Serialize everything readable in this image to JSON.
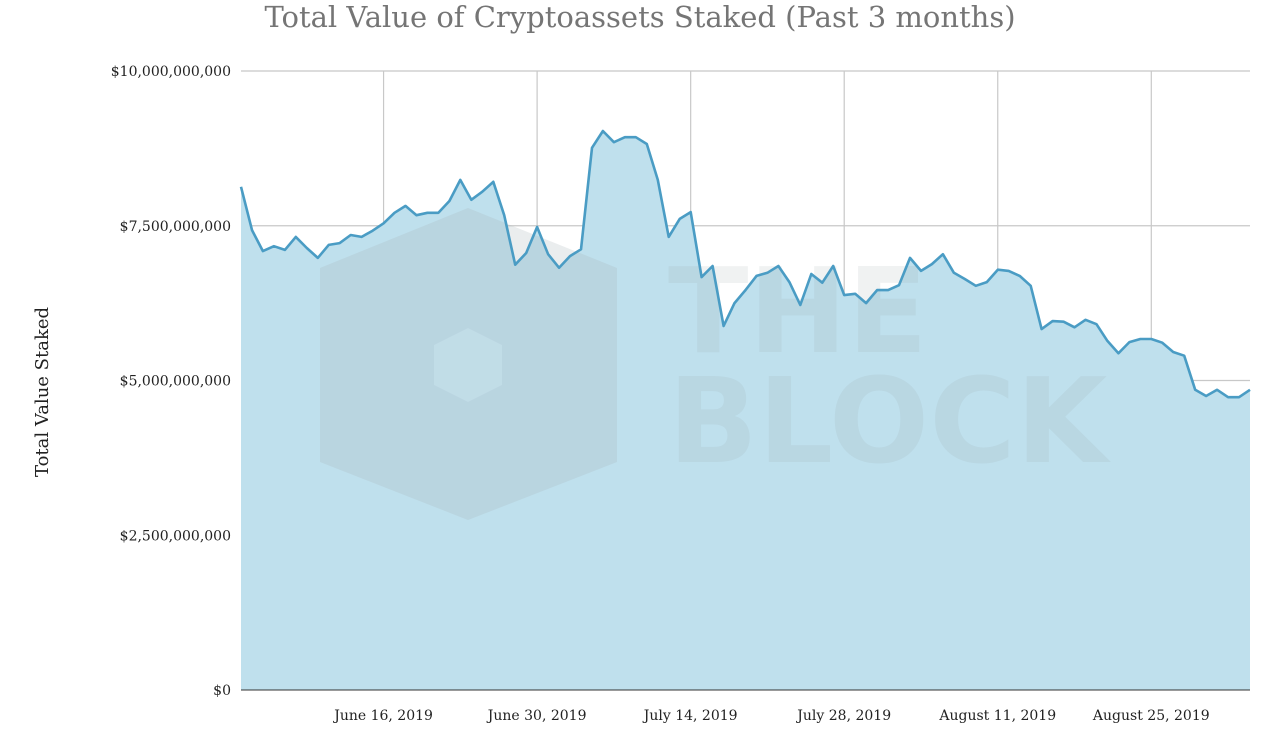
{
  "chart_data": {
    "type": "area",
    "title": "Total Value of Cryptoassets Staked (Past 3 months)",
    "xlabel": "",
    "ylabel": "Total Value Staked",
    "value_unit": "USD billions",
    "start_date": "2019-06-03",
    "interval_days": 1,
    "values": [
      8.13,
      7.43,
      7.09,
      7.17,
      7.11,
      7.32,
      7.14,
      6.98,
      7.19,
      7.22,
      7.35,
      7.32,
      7.42,
      7.54,
      7.71,
      7.82,
      7.67,
      7.71,
      7.71,
      7.9,
      8.24,
      7.92,
      8.05,
      8.21,
      7.67,
      6.87,
      7.06,
      7.48,
      7.04,
      6.82,
      7.01,
      7.12,
      8.76,
      9.03,
      8.85,
      8.93,
      8.93,
      8.82,
      8.24,
      7.32,
      7.61,
      7.72,
      6.67,
      6.85,
      5.88,
      6.25,
      6.46,
      6.69,
      6.74,
      6.85,
      6.59,
      6.22,
      6.72,
      6.58,
      6.85,
      6.38,
      6.4,
      6.25,
      6.46,
      6.46,
      6.54,
      6.98,
      6.77,
      6.88,
      7.04,
      6.74,
      6.64,
      6.53,
      6.59,
      6.79,
      6.77,
      6.69,
      6.53,
      5.83,
      5.96,
      5.95,
      5.86,
      5.98,
      5.91,
      5.64,
      5.44,
      5.62,
      5.67,
      5.67,
      5.61,
      5.46,
      5.4,
      4.85,
      4.75,
      4.85,
      4.73,
      4.73,
      4.85
    ],
    "ylim": [
      0,
      10
    ],
    "y_ticks": [
      {
        "value": 0,
        "label": "$0"
      },
      {
        "value": 2.5,
        "label": "$2,500,000,000"
      },
      {
        "value": 5,
        "label": "$5,000,000,000"
      },
      {
        "value": 7.5,
        "label": "$7,500,000,000"
      },
      {
        "value": 10,
        "label": "$10,000,000,000"
      }
    ],
    "x_ticks": [
      {
        "index": 13,
        "label": "June 16, 2019"
      },
      {
        "index": 27,
        "label": "June 30, 2019"
      },
      {
        "index": 41,
        "label": "July 14, 2019"
      },
      {
        "index": 55,
        "label": "July 28, 2019"
      },
      {
        "index": 69,
        "label": "August 11, 2019"
      },
      {
        "index": 83,
        "label": "August 25, 2019"
      }
    ],
    "grid": true,
    "legend": "none",
    "colors": {
      "line": "#4a9cc4",
      "fill": "#bfe0ed",
      "grid": "#c8c8c8"
    }
  },
  "watermark": "THE BLOCK"
}
